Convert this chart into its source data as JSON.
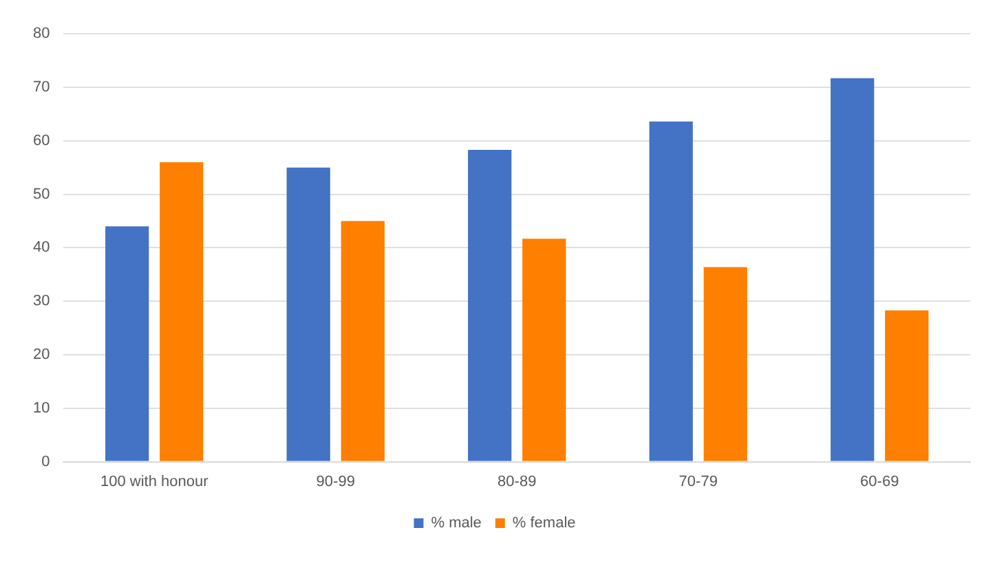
{
  "chart_data": {
    "type": "bar",
    "categories": [
      "100 with honour",
      "90-99",
      "80-89",
      "70-79",
      "60-69"
    ],
    "series": [
      {
        "name": "% male",
        "color": "#4472c4",
        "values": [
          44,
          55,
          58.3,
          63.6,
          71.7
        ]
      },
      {
        "name": "% female",
        "color": "#ff7f00",
        "values": [
          56,
          45,
          41.7,
          36.4,
          28.3
        ]
      }
    ],
    "ylim": [
      0,
      80
    ],
    "yticks": [
      0,
      10,
      20,
      30,
      40,
      50,
      60,
      70,
      80
    ],
    "grid": "y",
    "legend": "bottom"
  }
}
